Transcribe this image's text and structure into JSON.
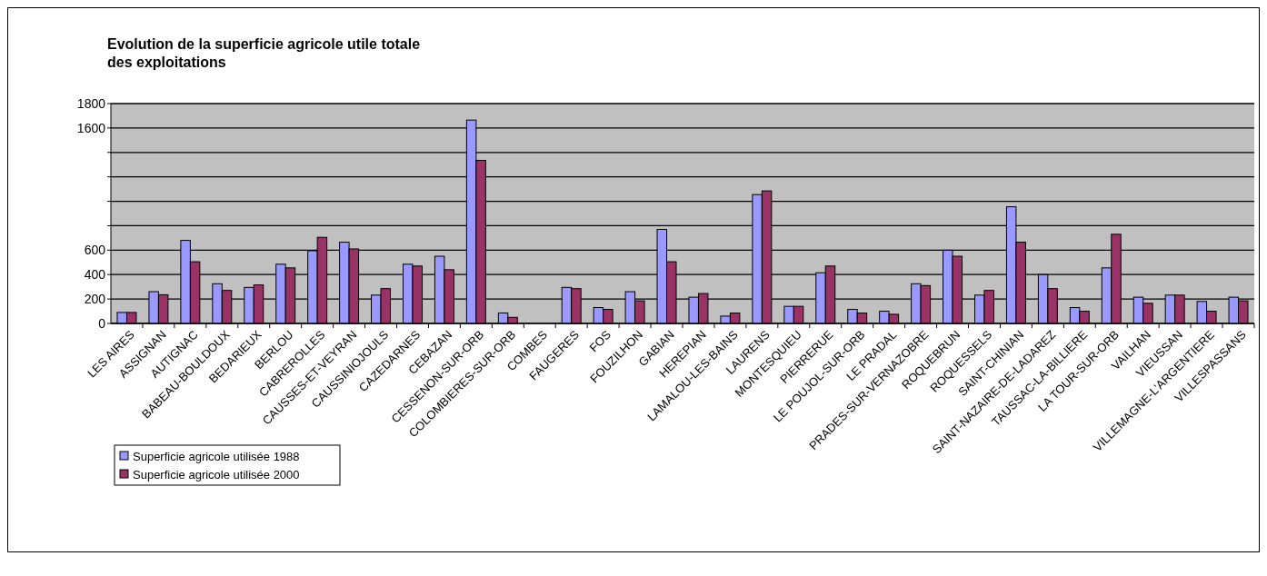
{
  "chart_data": {
    "type": "bar",
    "title": "Evolution de la superficie agricole utile totale des exploitations",
    "categories": [
      "LES AIRES",
      "ASSIGNAN",
      "AUTIGNAC",
      "BABEAU-BOULDOUX",
      "BEDARIEUX",
      "BERLOU",
      "CABREROLLES",
      "CAUSSES-ET-VEYRAN",
      "CAUSSINIOJOULS",
      "CAZEDARNES",
      "CEBAZAN",
      "CESSENON-SUR-ORB",
      "COLOMBIERES-SUR-ORB",
      "COMBES",
      "FAUGERES",
      "FOS",
      "FOUZILHON",
      "GABIAN",
      "HEREPIAN",
      "LAMALOU-LES-BAINS",
      "LAURENS",
      "MONTESQUIEU",
      "PIERRERUE",
      "LE POUJOL-SUR-ORB",
      "LE PRADAL",
      "PRADES-SUR-VERNAZOBRE",
      "ROQUEBRUN",
      "ROQUESSELS",
      "SAINT-CHINIAN",
      "SAINT-NAZAIRE-DE-LADAREZ",
      "TAUSSAC-LA-BILLIERE",
      "LA TOUR-SUR-ORB",
      "VAILHAN",
      "VIEUSSAN",
      "VILLEMAGNE-L'ARGENTIERE",
      "VILLESPASSANS"
    ],
    "series": [
      {
        "name": "Superficie agricole utilisée 1988",
        "color": "#9999ff",
        "values": [
          90,
          260,
          680,
          325,
          295,
          485,
          595,
          665,
          232,
          485,
          550,
          1665,
          86,
          null,
          295,
          130,
          260,
          770,
          215,
          60,
          1055,
          140,
          415,
          115,
          100,
          325,
          600,
          232,
          955,
          400,
          130,
          455,
          215,
          232,
          180,
          215
        ]
      },
      {
        "name": "Superficie agricole utilisée 2000",
        "color": "#993366",
        "values": [
          90,
          235,
          505,
          270,
          315,
          455,
          705,
          610,
          285,
          470,
          440,
          1335,
          50,
          null,
          285,
          115,
          185,
          505,
          245,
          85,
          1085,
          140,
          470,
          85,
          75,
          310,
          550,
          270,
          665,
          285,
          100,
          730,
          165,
          232,
          100,
          185
        ]
      }
    ],
    "ylim": [
      0,
      1800
    ],
    "yticks": [
      0,
      200,
      400,
      600,
      {
        "value": 800,
        "label": null
      },
      {
        "value": 1000,
        "label": null
      },
      {
        "value": 1200,
        "label": null
      },
      {
        "value": 1400,
        "label": null
      },
      1600,
      1800
    ],
    "grid": "y",
    "legend": "bottom left"
  }
}
